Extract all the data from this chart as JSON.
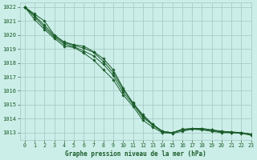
{
  "title": "Graphe pression niveau de la mer (hPa)",
  "bg_color": "#cceee8",
  "grid_color": "#aaccc8",
  "line_color": "#1a5c2a",
  "marker_color": "#1a5c2a",
  "xlim": [
    -0.5,
    23
  ],
  "ylim": [
    1012.5,
    1022.3
  ],
  "yticks": [
    1013,
    1014,
    1015,
    1016,
    1017,
    1018,
    1019,
    1020,
    1021,
    1022
  ],
  "xticks": [
    0,
    1,
    2,
    3,
    4,
    5,
    6,
    7,
    8,
    9,
    10,
    11,
    12,
    13,
    14,
    15,
    16,
    17,
    18,
    19,
    20,
    21,
    22,
    23
  ],
  "series": [
    [
      1022.0,
      1021.5,
      1021.0,
      1020.0,
      1019.5,
      1019.3,
      1019.2,
      1018.8,
      1018.3,
      1017.5,
      1016.2,
      1015.1,
      1014.3,
      1013.6,
      1013.1,
      1013.0,
      1013.2,
      1013.3,
      1013.3,
      1013.2,
      1013.1,
      1013.05,
      1013.0,
      1012.9
    ],
    [
      1022.0,
      1021.4,
      1020.7,
      1019.95,
      1019.45,
      1019.25,
      1019.05,
      1018.75,
      1018.1,
      1017.3,
      1016.1,
      1015.15,
      1014.2,
      1013.6,
      1013.1,
      1013.0,
      1013.25,
      1013.3,
      1013.3,
      1013.2,
      1013.1,
      1013.05,
      1013.0,
      1012.9
    ],
    [
      1022.0,
      1021.3,
      1020.55,
      1019.85,
      1019.35,
      1019.15,
      1018.85,
      1018.5,
      1017.9,
      1017.1,
      1015.9,
      1015.05,
      1014.1,
      1013.55,
      1013.05,
      1013.0,
      1013.2,
      1013.25,
      1013.25,
      1013.15,
      1013.05,
      1013.0,
      1013.0,
      1012.88
    ],
    [
      1022.0,
      1021.1,
      1020.4,
      1019.75,
      1019.2,
      1019.1,
      1018.7,
      1018.2,
      1017.5,
      1016.8,
      1015.7,
      1014.9,
      1013.9,
      1013.4,
      1013.0,
      1012.95,
      1013.1,
      1013.25,
      1013.2,
      1013.1,
      1013.0,
      1013.0,
      1012.95,
      1012.82
    ]
  ]
}
